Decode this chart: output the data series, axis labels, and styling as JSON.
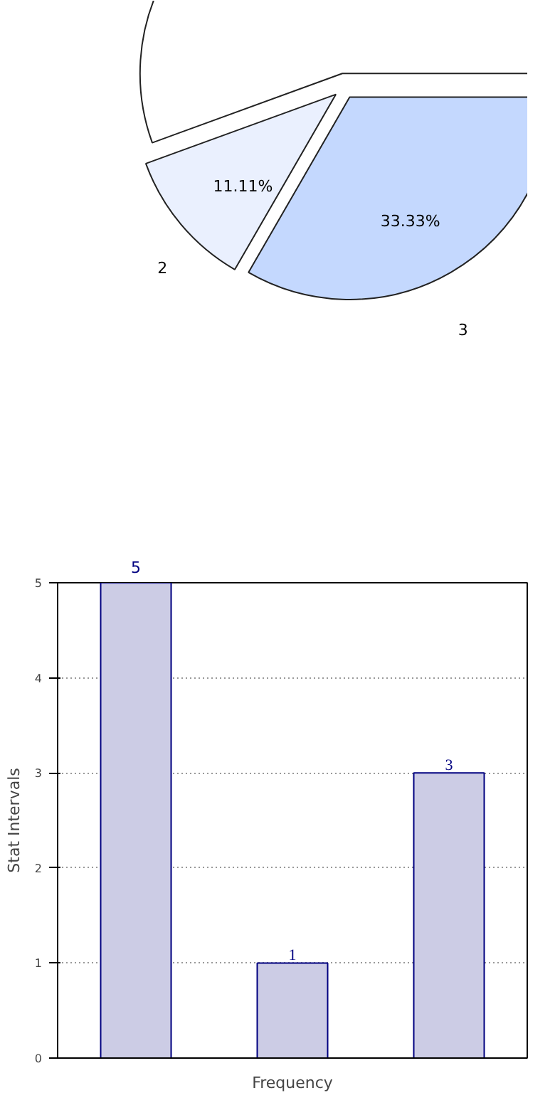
{
  "chart_data": [
    {
      "type": "pie",
      "categories": [
        null,
        "2",
        "3"
      ],
      "values": [
        55.56,
        11.11,
        33.33
      ],
      "value_labels": [
        null,
        "11.11%",
        "33.33%"
      ],
      "colors": [
        "#ffffff",
        "#eaf0fe",
        "#c4d8fe"
      ]
    },
    {
      "type": "bar",
      "categories": [
        null,
        null,
        null
      ],
      "values": [
        5,
        1,
        3
      ],
      "color": "#ccccE5",
      "xlabel": "Frequency",
      "ylabel": "Stat Intervals",
      "ylim": [
        0,
        5
      ],
      "yticks": [
        0,
        1,
        2,
        3,
        4,
        5
      ],
      "grid": "y",
      "data_labels": true
    }
  ]
}
